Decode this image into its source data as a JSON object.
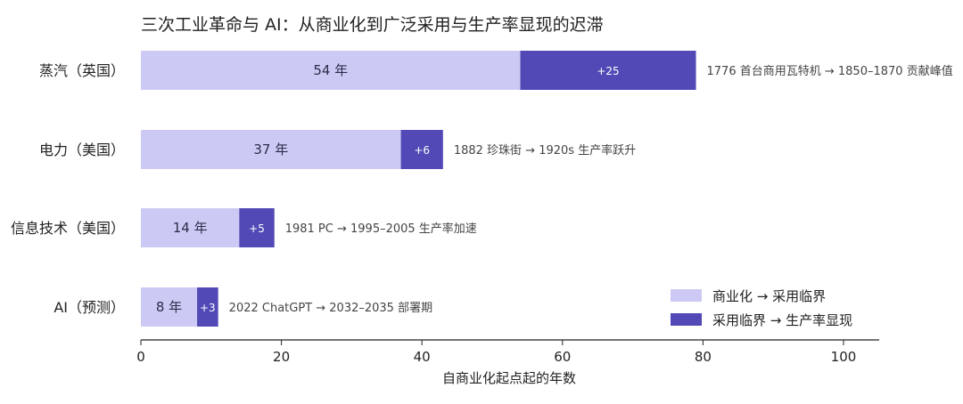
{
  "chart_data": {
    "type": "bar",
    "orientation": "horizontal",
    "stacked": true,
    "title": "三次工业革命与 AI：从商业化到广泛采用与生产率显现的迟滞",
    "xlabel": "自商业化起点起的年数",
    "ylabel": "",
    "xlim": [
      0,
      105
    ],
    "xticks": [
      0,
      20,
      40,
      60,
      80,
      100
    ],
    "grid": false,
    "legend_position": "bottom-right",
    "categories": [
      "蒸汽（英国）",
      "电力（美国）",
      "信息技术（美国）",
      "AI（预测）"
    ],
    "series": [
      {
        "name": "商业化 → 采用临界",
        "color": "#cccaf4",
        "values": [
          54,
          37,
          14,
          8
        ],
        "labels": [
          "54 年",
          "37 年",
          "14 年",
          "8 年"
        ]
      },
      {
        "name": "采用临界 → 生产率显现",
        "color": "#5249b6",
        "values": [
          25,
          6,
          5,
          3
        ],
        "labels": [
          "+25",
          "+6",
          "+5",
          "+3"
        ]
      }
    ],
    "annotations": [
      "1776 首台商用瓦特机 → 1850–1870 贡献峰值",
      "1882 珍珠街 → 1920s 生产率跃升",
      "1981 PC → 1995–2005 生产率加速",
      "2022 ChatGPT → 2032–2035 部署期"
    ]
  }
}
